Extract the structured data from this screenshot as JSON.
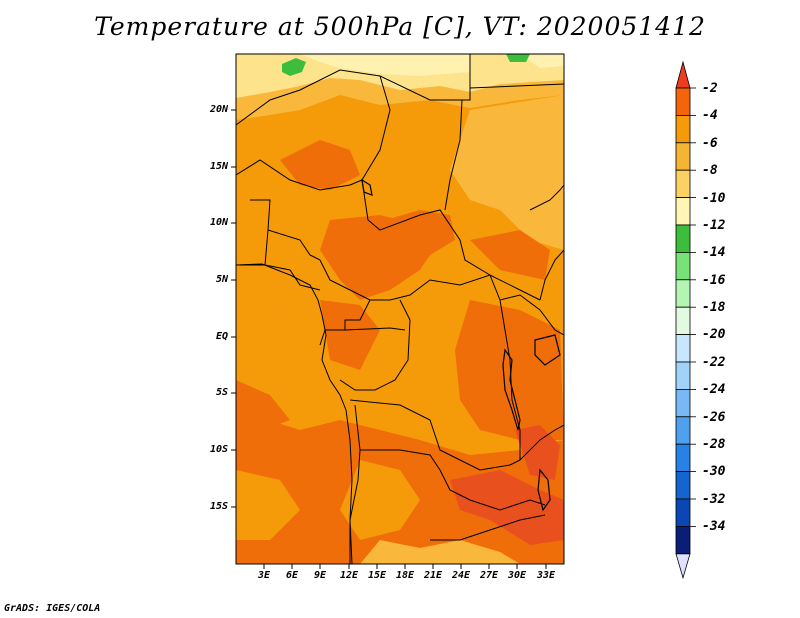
{
  "title": "Temperature at 500hPa [C], VT: 2020051412",
  "credit": "GrADS: IGES/COLA",
  "map": {
    "lat_labels": [
      "20N",
      "15N",
      "10N",
      "5N",
      "EQ",
      "5S",
      "10S",
      "15S"
    ],
    "lon_labels": [
      "3E",
      "6E",
      "9E",
      "12E",
      "15E",
      "18E",
      "21E",
      "24E",
      "27E",
      "30E",
      "33E"
    ]
  },
  "colorbar": {
    "labels": [
      "-2",
      "-4",
      "-6",
      "-8",
      "-10",
      "-12",
      "-14",
      "-16",
      "-18",
      "-20",
      "-22",
      "-24",
      "-26",
      "-28",
      "-30",
      "-32",
      "-34"
    ],
    "colors": [
      "#f03c1e",
      "#f4640a",
      "#f59b0a",
      "#f5b432",
      "#fad264",
      "#fff5b4",
      "#3cbe3c",
      "#78e178",
      "#b4f5b4",
      "#e1fae1",
      "#c8e6ff",
      "#a0d2fa",
      "#78b9f5",
      "#50a0f0",
      "#2882e6",
      "#1464d2",
      "#0a46b4",
      "#0a1e78",
      "#e1e1ff"
    ]
  },
  "colors": {
    "light_yellow": "#fde48c",
    "orange_light": "#f9b83b",
    "orange_mid": "#f59b0a",
    "orange_dark": "#f06e0a",
    "red_orange": "#e8501e",
    "green": "#3cbe3c"
  }
}
